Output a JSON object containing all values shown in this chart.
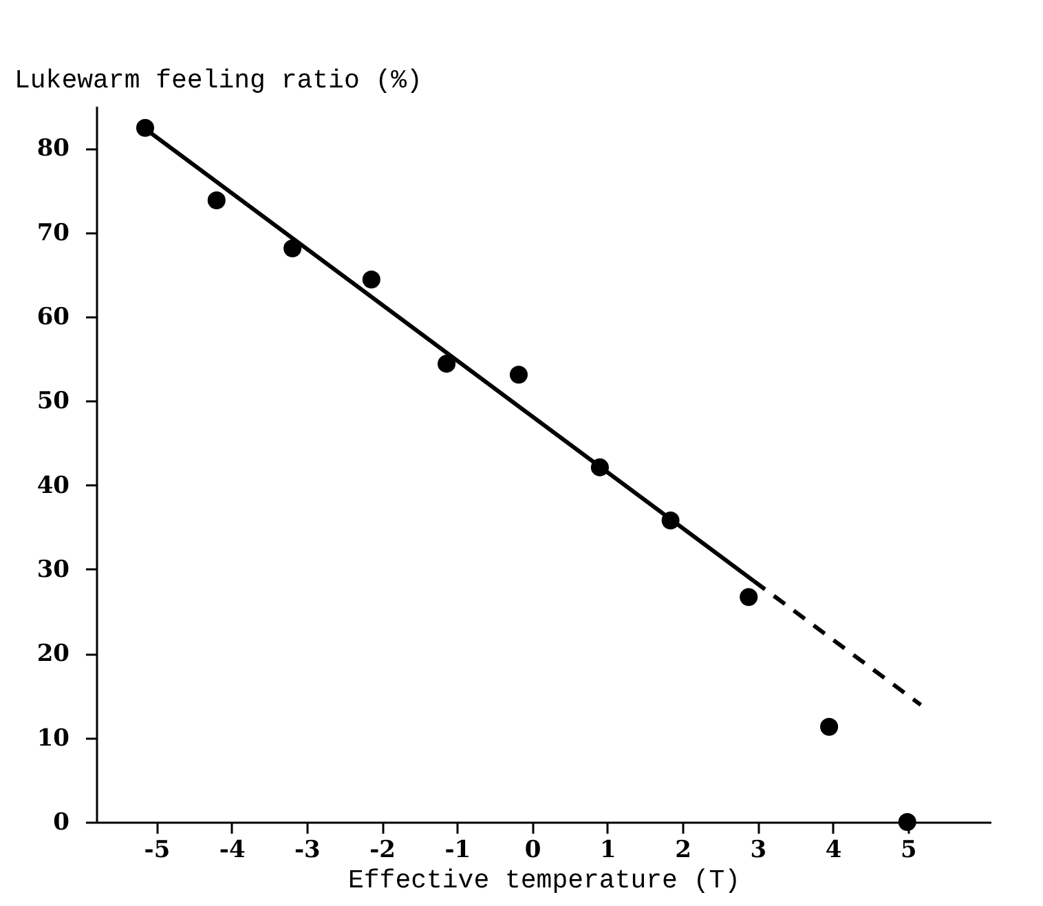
{
  "chart_data": {
    "type": "scatter",
    "xlabel": "Effective temperature (T)",
    "ylabel": "Lukewarm feeling ratio (%)",
    "xlim": [
      -5.8,
      6.1
    ],
    "ylim": [
      0,
      85
    ],
    "xticks": [
      -5,
      -4,
      -3,
      -2,
      -1,
      0,
      1,
      2,
      3,
      4,
      5
    ],
    "yticks": [
      0,
      10,
      20,
      30,
      40,
      50,
      60,
      70,
      80
    ],
    "grid": false,
    "series": [
      {
        "color": "#000000",
        "marker": "circle",
        "x": [
          -5.15,
          -4.2,
          -3.19,
          -2.14,
          -1.14,
          -0.18,
          0.9,
          1.84,
          2.88,
          3.95,
          4.99
        ],
        "values": [
          82.4,
          73.8,
          68.1,
          64.4,
          54.4,
          53.1,
          42.1,
          35.8,
          26.7,
          11.3,
          0
        ]
      },
      {
        "type": "line",
        "color": "#000000",
        "marker": "none",
        "line_style": "solid",
        "x": [
          -5.15,
          2.95
        ],
        "values": [
          82.3,
          28.6
        ]
      },
      {
        "type": "line",
        "color": "#000000",
        "marker": "none",
        "line_style": "dashed",
        "x": [
          2.95,
          5.17
        ],
        "values": [
          28.6,
          13.9
        ]
      }
    ]
  }
}
